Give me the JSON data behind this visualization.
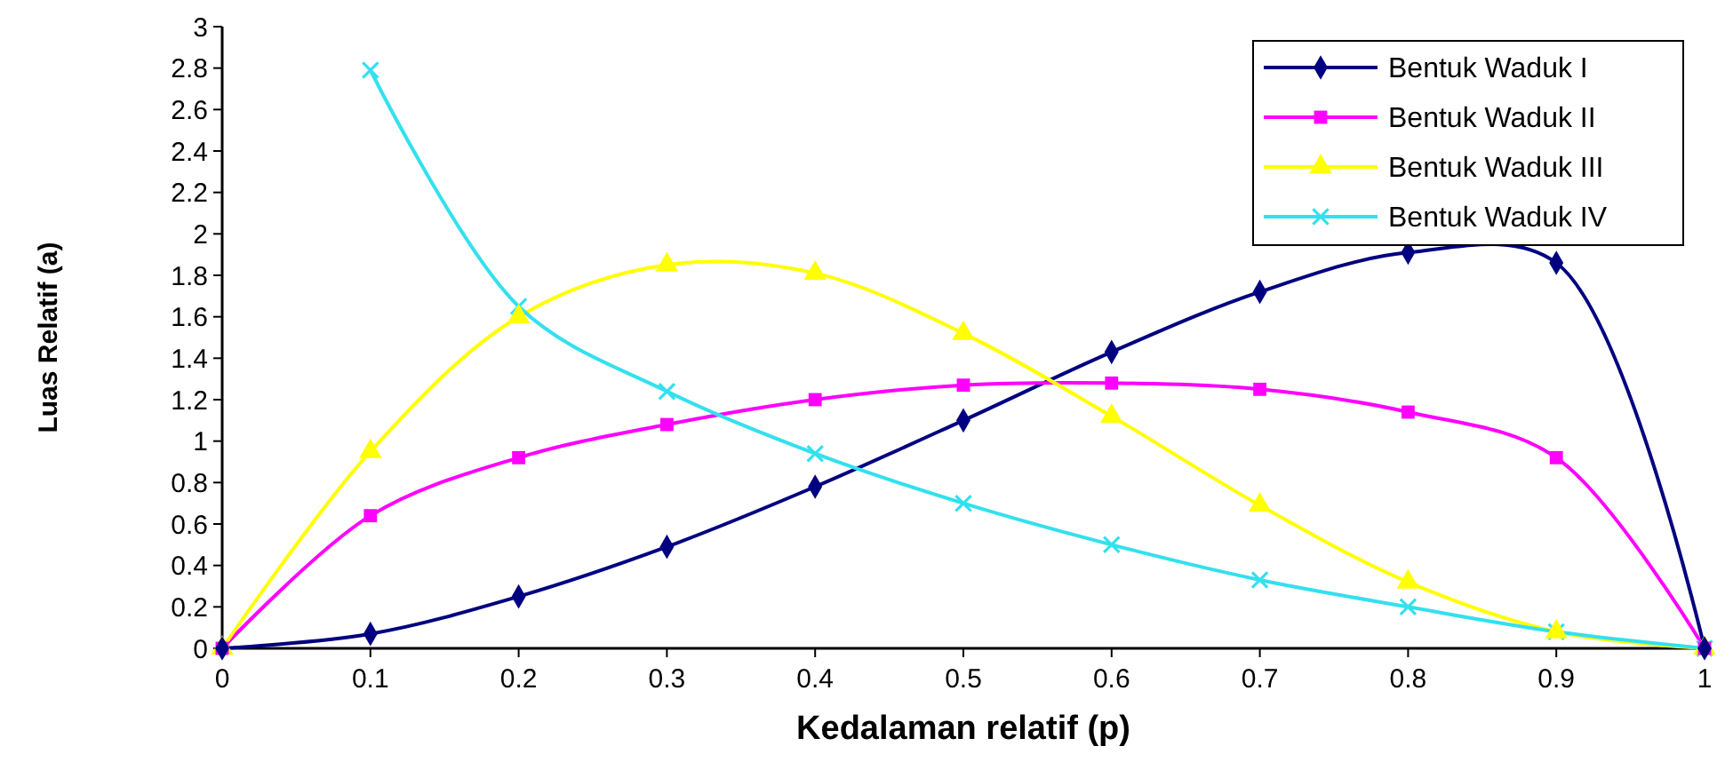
{
  "chart_data": {
    "type": "line",
    "xlabel": "Kedalaman relatif (p)",
    "ylabel": "Luas Relatif (a)",
    "x": [
      0,
      0.1,
      0.2,
      0.3,
      0.4,
      0.5,
      0.6,
      0.7,
      0.8,
      0.9,
      1
    ],
    "xlim": [
      0,
      1
    ],
    "xticks": [
      0,
      0.1,
      0.2,
      0.3,
      0.4,
      0.5,
      0.6,
      0.7,
      0.8,
      0.9,
      1
    ],
    "ylim": [
      0,
      3
    ],
    "yticks": [
      0,
      0.2,
      0.4,
      0.6,
      0.8,
      1,
      1.2,
      1.4,
      1.6,
      1.8,
      2,
      2.2,
      2.4,
      2.6,
      2.8,
      3
    ],
    "grid": false,
    "legend": "top right",
    "line_style": "solid",
    "series": [
      {
        "name": "Bentuk Waduk I",
        "color": "#000080",
        "marker": "diamond",
        "values": [
          0,
          0.07,
          0.25,
          0.49,
          0.78,
          1.1,
          1.43,
          1.72,
          1.91,
          1.86,
          0
        ]
      },
      {
        "name": "Bentuk Waduk II",
        "color": "#ff00ff",
        "marker": "square",
        "values": [
          0,
          0.64,
          0.92,
          1.08,
          1.2,
          1.27,
          1.28,
          1.25,
          1.14,
          0.92,
          0
        ]
      },
      {
        "name": "Bentuk Waduk III",
        "color": "#ffff00",
        "marker": "triangle",
        "values": [
          0,
          0.95,
          1.6,
          1.85,
          1.81,
          1.52,
          1.12,
          0.69,
          0.32,
          0.08,
          0
        ]
      },
      {
        "name": "Bentuk Waduk IV",
        "color": "#33e0ee",
        "marker": "cross",
        "values": [
          null,
          2.79,
          1.65,
          1.24,
          0.94,
          0.7,
          0.5,
          0.33,
          0.2,
          0.08,
          0
        ]
      }
    ]
  }
}
